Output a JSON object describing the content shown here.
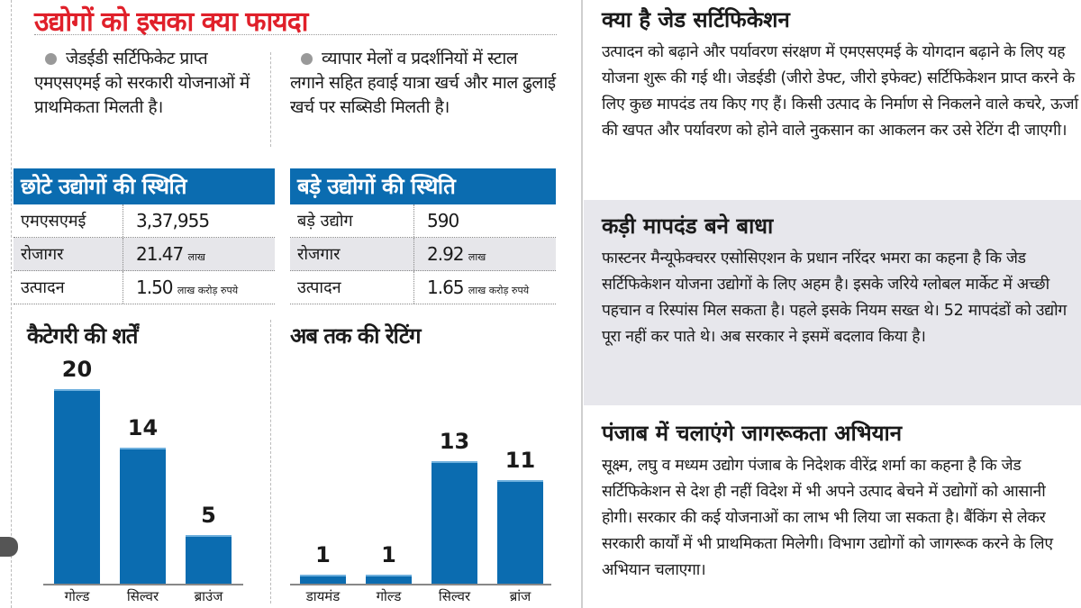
{
  "title": "उद्योगों को इसका क्या फायदा",
  "benefits": [
    "जेडईडी सर्टिफिकेट प्राप्त एमएसएमई को सरकारी योजनाओं में प्राथमिकता मिलती है।",
    "व्यापार मेलों व प्रदर्शनियों में स्टाल लगाने सहित हवाई यात्रा खर्च और माल ढुलाई खर्च पर सब्सिडी मिलती है।"
  ],
  "small_table": {
    "title": "छोटे उद्योगों की स्थिति",
    "rows": [
      {
        "label": "एमएसएमई",
        "value": "3,37,955",
        "unit": ""
      },
      {
        "label": "रोजागर",
        "value": "21.47",
        "unit": "लाख"
      },
      {
        "label": "उत्पादन",
        "value": "1.50",
        "unit": "लाख करोड़ रुपये"
      }
    ]
  },
  "large_table": {
    "title": "बड़े उद्योगों की स्थिति",
    "rows": [
      {
        "label": "बड़े उद्योग",
        "value": "590",
        "unit": ""
      },
      {
        "label": "रोजगार",
        "value": "2.92",
        "unit": "लाख"
      },
      {
        "label": "उत्पादन",
        "value": "1.65",
        "unit": "लाख करोड़ रुपये"
      }
    ]
  },
  "colors": {
    "accent": "#0b6cb0",
    "title_red": "#e0202a",
    "gray_box": "#e7e7ec"
  },
  "chart_data": [
    {
      "type": "bar",
      "title": "कैटेगरी की शर्तें",
      "categories": [
        "गोल्ड",
        "सिल्वर",
        "ब्राउंज"
      ],
      "values": [
        20,
        14,
        5
      ],
      "ylim": [
        0,
        20
      ],
      "grid": false
    },
    {
      "type": "bar",
      "title": "अब तक की रेटिंग",
      "categories": [
        "डायमंड",
        "गोल्ड",
        "सिल्वर",
        "ब्रांज"
      ],
      "values": [
        1,
        1,
        13,
        11
      ],
      "ylim": [
        0,
        13
      ],
      "grid": false
    }
  ],
  "sections": [
    {
      "heading": "क्या है जेड सर्टिफिकेशन",
      "body": "उत्पादन को बढ़ाने और पर्यावरण संरक्षण में एमएसएमई के योगदान बढ़ाने के लिए यह योजना शुरू की गई थी। जेडईडी (जीरो डेफ्ट, जीरो इफेक्ट) सर्टिफिकेशन प्राप्त करने के लिए कुछ मापदंड तय किए गए हैं। किसी उत्पाद के निर्माण से निकलने वाले कचरे, ऊर्जा की खपत और पर्यावरण को होने वाले नुकसान का आकलन कर उसे रेटिंग दी जाएगी।"
    },
    {
      "heading": "कड़ी मापदंड बने बाधा",
      "body": "फास्टनर मैन्यूफेक्चरर एसोसिएशन के प्रधान नरिंदर भमरा का कहना है कि जेड सर्टिफिकेशन योजना उद्योगों के लिए अहम है। इसके जरिये ग्लोबल मार्केट में अच्छी पहचान व रिस्पांस मिल सकता है। पहले इसके नियम सख्त थे। 52 मापदंडों को उद्योग पूरा नहीं कर पाते थे। अब सरकार ने इसमें बदलाव किया है।"
    },
    {
      "heading": "पंजाब में चलाएंगे जागरूकता अभियान",
      "body": "सूक्ष्म, लघु व मध्यम उद्योग पंजाब के निदेशक वीरेंद्र शर्मा का कहना है कि जेड सर्टिफिकेशन से देश ही नहीं विदेश में भी अपने उत्पाद बेचने में उद्योगों को आसानी होगी। सरकार की कई योजनाओं का लाभ भी लिया जा सकता है। बैंकिंग से लेकर सरकारी कार्यों में भी प्राथमिकता मिलेगी। विभाग उद्योगों को जागरूक करने के लिए अभियान चलाएगा।"
    }
  ]
}
